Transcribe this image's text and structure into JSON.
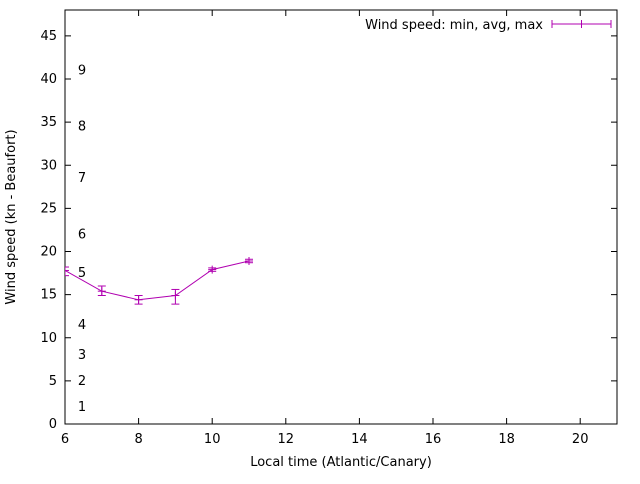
{
  "chart_data": {
    "type": "line",
    "title": "",
    "xlabel": "Local time (Atlantic/Canary)",
    "ylabel": "Wind speed (kn - Beaufort)",
    "xlim": [
      6,
      21
    ],
    "ylim": [
      0,
      48
    ],
    "xticks": [
      "6",
      "8",
      "10",
      "12",
      "14",
      "16",
      "18",
      "20"
    ],
    "xtick_values": [
      6,
      8,
      10,
      12,
      14,
      16,
      18,
      20
    ],
    "yticks": [
      "0",
      "5",
      "10",
      "15",
      "20",
      "25",
      "30",
      "35",
      "40",
      "45"
    ],
    "ytick_values": [
      0,
      5,
      10,
      15,
      20,
      25,
      30,
      35,
      40,
      45
    ],
    "grid": "off",
    "legend": {
      "label": "Wind speed: min, avg, max",
      "position": "top-right"
    },
    "beaufort_labels": [
      {
        "label": "1",
        "kn": 2
      },
      {
        "label": "2",
        "kn": 5
      },
      {
        "label": "3",
        "kn": 8
      },
      {
        "label": "4",
        "kn": 11.5
      },
      {
        "label": "5",
        "kn": 17.5
      },
      {
        "label": "6",
        "kn": 22
      },
      {
        "label": "7",
        "kn": 28.5
      },
      {
        "label": "8",
        "kn": 34.5
      },
      {
        "label": "9",
        "kn": 41
      }
    ],
    "series": [
      {
        "name": "Wind speed: min, avg, max",
        "color": "#b000b0",
        "x": [
          6,
          7,
          8,
          9,
          10,
          11
        ],
        "avg": [
          17.8,
          15.4,
          14.4,
          14.9,
          17.9,
          18.9
        ],
        "min": [
          17.2,
          14.9,
          13.9,
          13.9,
          17.7,
          18.7
        ],
        "max": [
          18.2,
          16.0,
          14.9,
          15.6,
          18.1,
          19.1
        ]
      }
    ]
  }
}
